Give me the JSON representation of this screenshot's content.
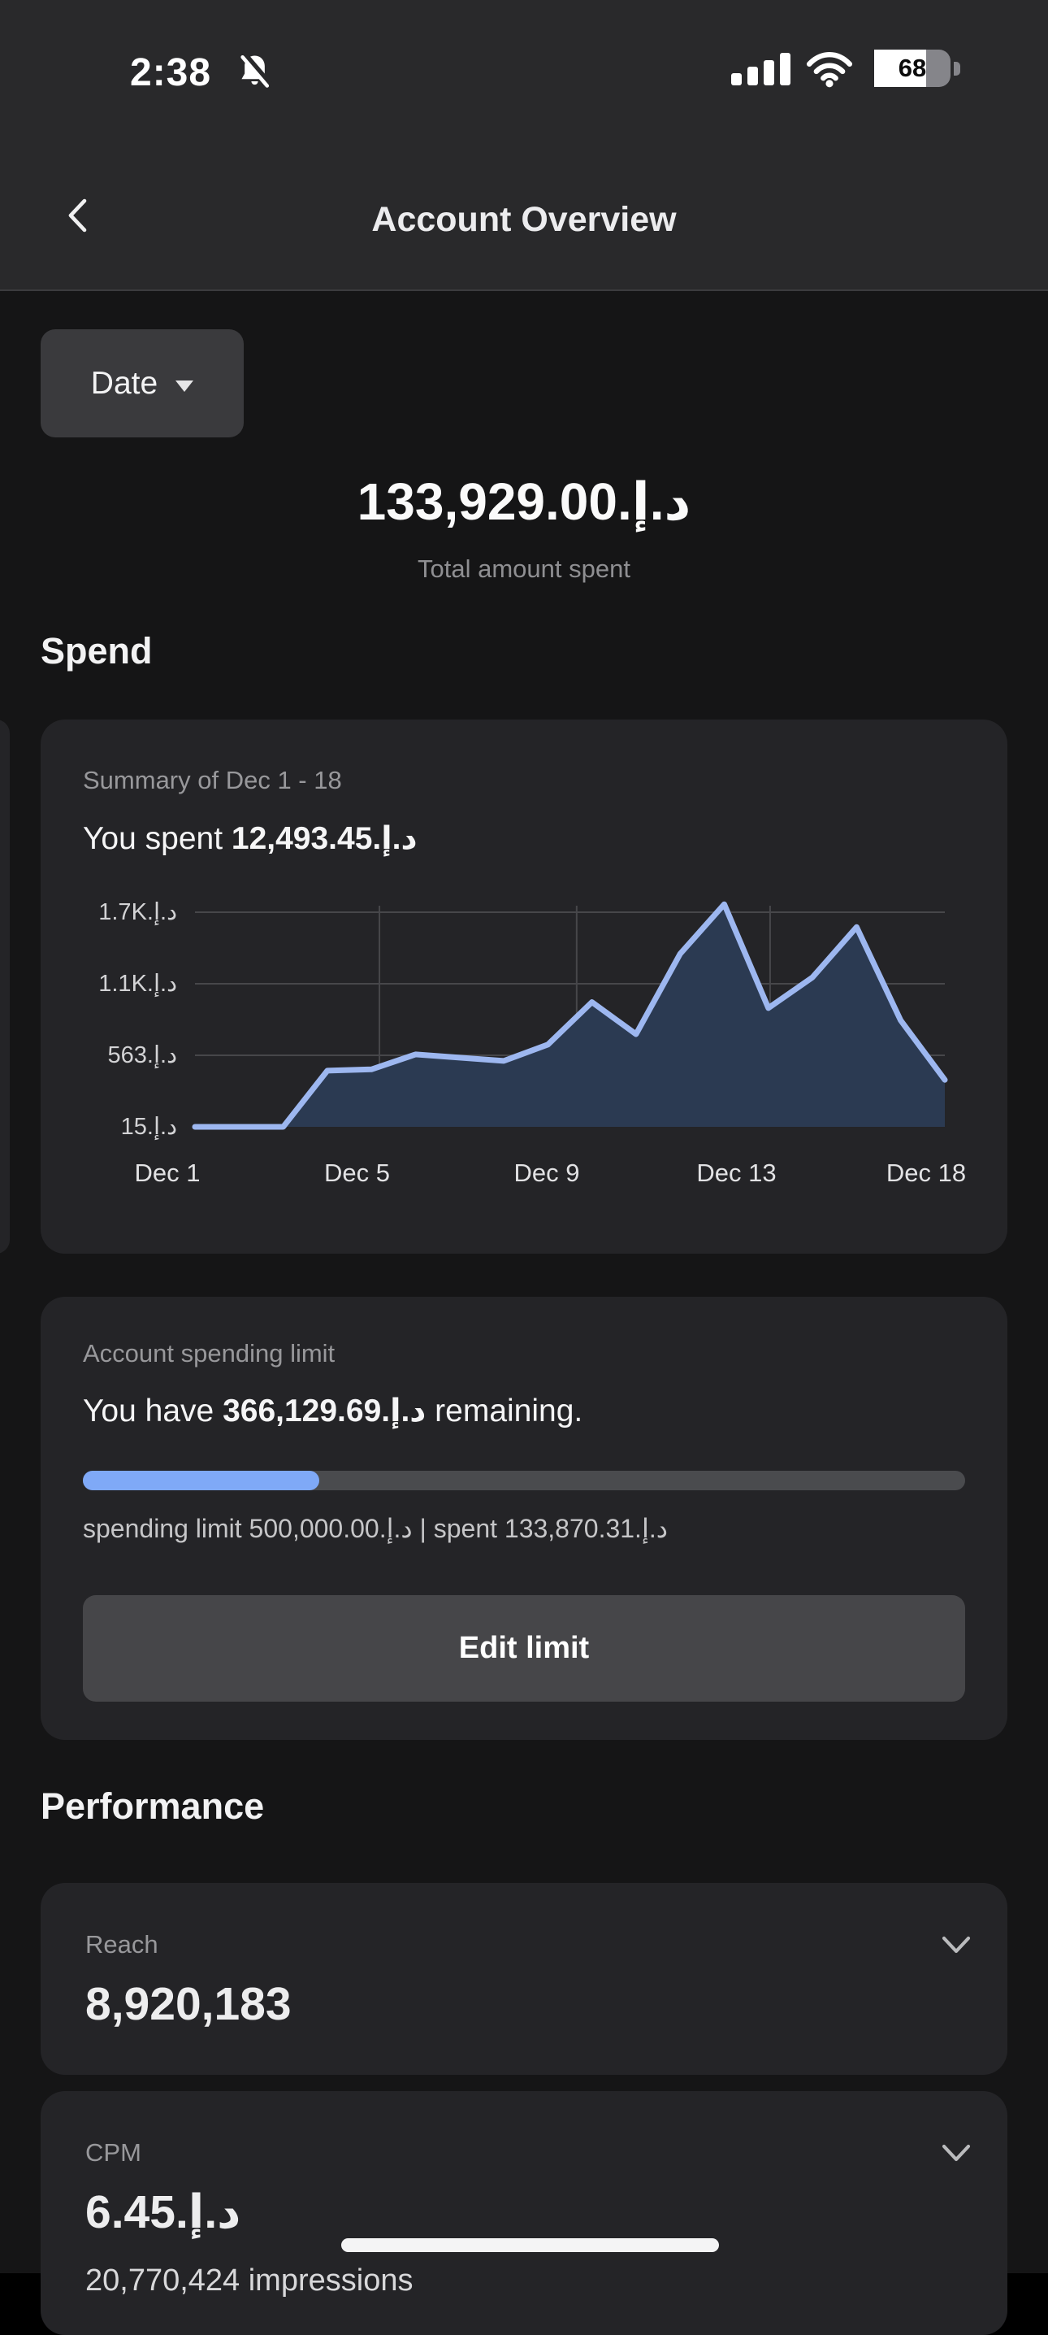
{
  "status_bar": {
    "time": "2:38",
    "battery_label": "68",
    "battery_percent": 68
  },
  "header": {
    "title": "Account Overview"
  },
  "toolbar": {
    "date_button_label": "Date"
  },
  "overview": {
    "total_amount": "133,929.00.د.إ",
    "total_caption": "Total amount spent"
  },
  "sections": {
    "spend": "Spend",
    "performance": "Performance"
  },
  "spend_card": {
    "summary_label": "Summary of Dec 1 - 18",
    "spent_prefix": "You spent ",
    "spent_amount": "12,493.45.د.إ"
  },
  "chart_data": {
    "type": "area",
    "title": "Summary of Dec 1 - 18",
    "x": [
      "Dec 1",
      "Dec 2",
      "Dec 3",
      "Dec 4",
      "Dec 5",
      "Dec 6",
      "Dec 7",
      "Dec 8",
      "Dec 9",
      "Dec 10",
      "Dec 11",
      "Dec 12",
      "Dec 13",
      "Dec 14",
      "Dec 15",
      "Dec 16",
      "Dec 17",
      "Dec 18"
    ],
    "values": [
      15,
      15,
      15,
      445,
      455,
      570,
      545,
      520,
      645,
      970,
      725,
      1340,
      1720,
      925,
      1160,
      1545,
      830,
      375
    ],
    "x_axis_labels": [
      "Dec 1",
      "Dec 5",
      "Dec 9",
      "Dec 13",
      "Dec 18"
    ],
    "y_ticks": [
      {
        "value": 15,
        "label": "15.د.إ"
      },
      {
        "value": 563,
        "label": "563.د.إ"
      },
      {
        "value": 1111,
        "label": "1.1K.د.إ"
      },
      {
        "value": 1659,
        "label": "1.7K.د.إ"
      }
    ],
    "ylim": [
      15,
      1730
    ],
    "grid": true,
    "legend": false,
    "line_color": "#9db7f0",
    "fill_color": "#2b3a52",
    "grid_color": "#47474a"
  },
  "limit_card": {
    "label": "Account spending limit",
    "remaining_prefix": "You have ",
    "remaining_amount": "366,129.69.د.إ",
    "remaining_suffix": " remaining.",
    "progress_percent": 26.8,
    "caption": "spending limit 500,000.00.د.إ | spent 133,870.31.د.إ",
    "button_label": "Edit limit"
  },
  "metrics": [
    {
      "label": "Reach",
      "value": "8,920,183"
    },
    {
      "label": "CPM",
      "value": "6.45.د.إ",
      "sub_value": "20,770,424 impressions"
    }
  ],
  "colors": {
    "accent_blue": "#7fa9f7",
    "progress_track": "#4a4b4e"
  }
}
